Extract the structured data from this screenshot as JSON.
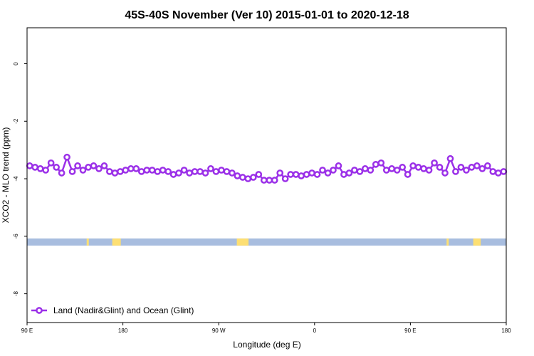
{
  "chart_data": {
    "type": "line",
    "title": "45S-40S November (Ver 10)   2015-01-01 to 2020-12-18",
    "xlabel": "Longitude (deg E)",
    "ylabel": "XCO2 - MLO trend (ppm)",
    "x_tick_labels": [
      "90 E",
      "180",
      "90 W",
      "0",
      "90 E",
      "180"
    ],
    "x_tick_values": [
      90,
      180,
      270,
      360,
      450,
      540
    ],
    "xlim": [
      90,
      540
    ],
    "y_tick_labels": [
      "0",
      "-2",
      "-4",
      "-6",
      "-8"
    ],
    "y_tick_values": [
      0,
      -2,
      -4,
      -6,
      -8
    ],
    "ylim": [
      -9.0,
      1.25
    ],
    "grid": false,
    "legend_position": "bottom-left",
    "series": [
      {
        "name": "Land (Nadir&Glint) and Ocean (Glint)",
        "color": "#9b30e8",
        "x": [
          92.5,
          97.5,
          102.5,
          107.5,
          112.5,
          117.5,
          122.5,
          127.5,
          132.5,
          137.5,
          142.5,
          147.5,
          152.5,
          157.5,
          162.5,
          167.5,
          172.5,
          177.5,
          182.5,
          187.5,
          192.5,
          197.5,
          202.5,
          207.5,
          212.5,
          217.5,
          222.5,
          227.5,
          232.5,
          237.5,
          242.5,
          247.5,
          252.5,
          257.5,
          262.5,
          267.5,
          272.5,
          277.5,
          282.5,
          287.5,
          292.5,
          297.5,
          302.5,
          307.5,
          312.5,
          317.5,
          322.5,
          327.5,
          332.5,
          337.5,
          342.5,
          347.5,
          352.5,
          357.5,
          362.5,
          367.5,
          372.5,
          377.5,
          382.5,
          387.5,
          392.5,
          397.5,
          402.5,
          407.5,
          412.5,
          417.5,
          422.5,
          427.5,
          432.5,
          437.5,
          442.5,
          447.5,
          452.5,
          457.5,
          462.5,
          467.5,
          472.5,
          477.5,
          482.5,
          487.5,
          492.5,
          497.5,
          502.5,
          507.5,
          512.5,
          517.5,
          522.5,
          527.5,
          532.5,
          537.5
        ],
        "values": [
          -3.55,
          -3.6,
          -3.65,
          -3.7,
          -3.45,
          -3.6,
          -3.8,
          -3.25,
          -3.75,
          -3.55,
          -3.7,
          -3.6,
          -3.55,
          -3.65,
          -3.55,
          -3.75,
          -3.8,
          -3.75,
          -3.7,
          -3.65,
          -3.65,
          -3.75,
          -3.7,
          -3.7,
          -3.75,
          -3.7,
          -3.75,
          -3.85,
          -3.8,
          -3.7,
          -3.8,
          -3.75,
          -3.75,
          -3.8,
          -3.65,
          -3.75,
          -3.7,
          -3.75,
          -3.8,
          -3.9,
          -3.95,
          -4.0,
          -3.95,
          -3.85,
          -4.05,
          -4.05,
          -4.05,
          -3.8,
          -4.0,
          -3.85,
          -3.85,
          -3.9,
          -3.85,
          -3.8,
          -3.85,
          -3.7,
          -3.8,
          -3.7,
          -3.55,
          -3.85,
          -3.8,
          -3.7,
          -3.75,
          -3.65,
          -3.7,
          -3.5,
          -3.45,
          -3.7,
          -3.65,
          -3.7,
          -3.6,
          -3.85,
          -3.55,
          -3.6,
          -3.65,
          -3.7,
          -3.45,
          -3.6,
          -3.8,
          -3.3,
          -3.75,
          -3.6,
          -3.7,
          -3.6,
          -3.55,
          -3.65,
          -3.55,
          -3.75,
          -3.8,
          -3.75
        ]
      }
    ],
    "land_ocean_band": {
      "y": -6.2,
      "ocean_color": "#a8bddf",
      "land_color": "#fddf73",
      "land_segments": [
        [
          146,
          148
        ],
        [
          170,
          178
        ],
        [
          287,
          298
        ],
        [
          484,
          486
        ],
        [
          509,
          516
        ]
      ]
    }
  }
}
